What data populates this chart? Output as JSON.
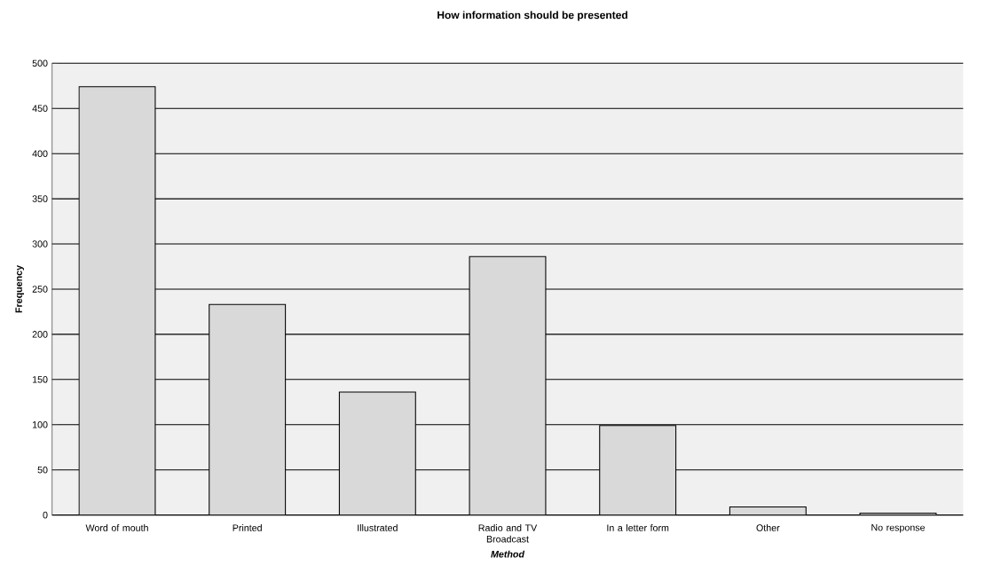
{
  "chart_data": {
    "type": "bar",
    "title": "How information should be presented",
    "xlabel": "Method",
    "ylabel": "Frequency",
    "categories": [
      "Word of mouth",
      "Printed",
      "Illustrated",
      "Radio and TV Broadcast",
      "In a letter form",
      "Other",
      "No response"
    ],
    "values": [
      474,
      233,
      136,
      286,
      99,
      9,
      2
    ],
    "color": "#d9d9d9",
    "ylim": [
      0,
      500
    ],
    "yticks": [
      0,
      50,
      100,
      150,
      200,
      250,
      300,
      350,
      400,
      450,
      500
    ],
    "grid": "y"
  }
}
